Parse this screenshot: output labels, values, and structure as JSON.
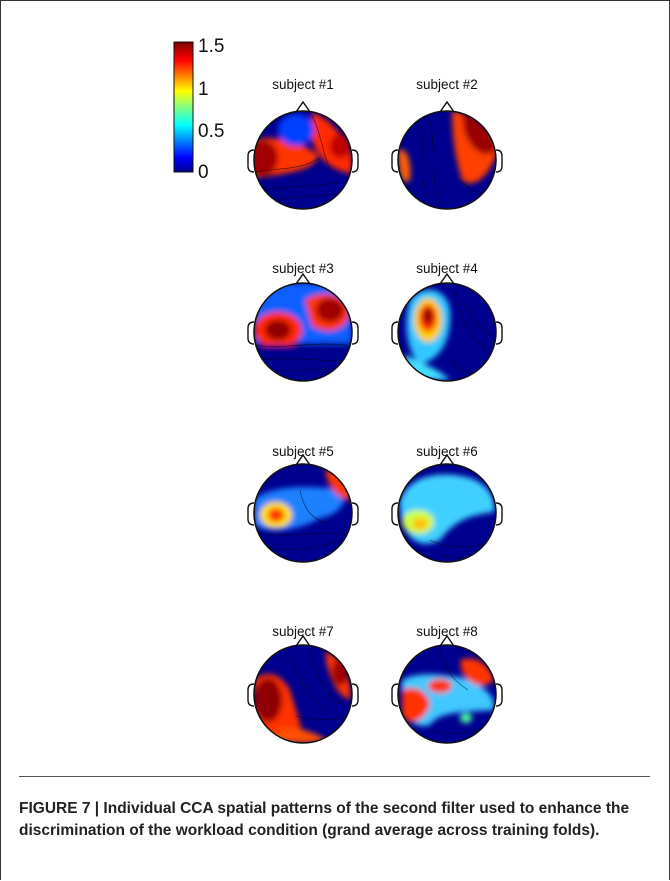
{
  "colorbar": {
    "ticks": [
      "1.5",
      "1",
      "0.5",
      "0"
    ],
    "min": 0,
    "max": 1.5,
    "colormap": [
      "#00008f",
      "#0000ff",
      "#0080ff",
      "#00ffff",
      "#80ff80",
      "#ffff00",
      "#ff8000",
      "#ff0000",
      "#800000"
    ]
  },
  "subjects": [
    {
      "label": "subject #1"
    },
    {
      "label": "subject #2"
    },
    {
      "label": "subject #3"
    },
    {
      "label": "subject #4"
    },
    {
      "label": "subject #5"
    },
    {
      "label": "subject #6"
    },
    {
      "label": "subject #7"
    },
    {
      "label": "subject #8"
    }
  ],
  "caption": "FIGURE 7 | Individual CCA spatial patterns of the second filter used to enhance the discrimination of the workload condition (grand average across training folds)."
}
